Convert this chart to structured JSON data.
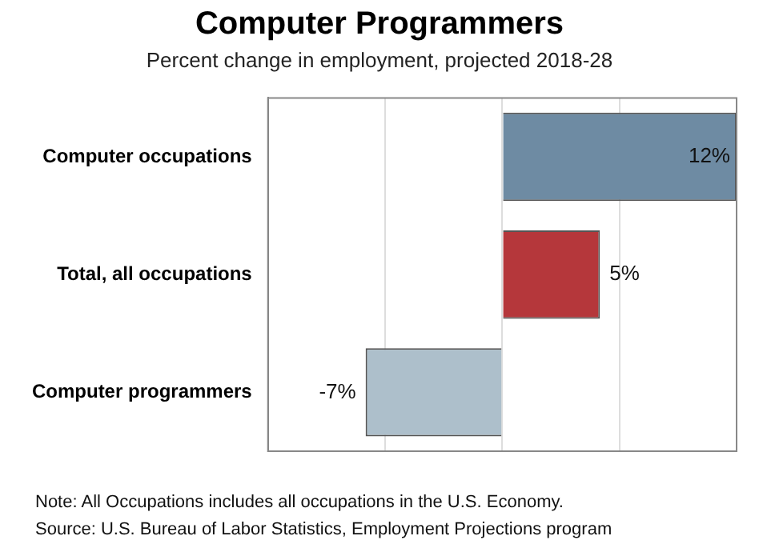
{
  "chart_data": {
    "type": "bar",
    "orientation": "horizontal",
    "title": "Computer Programmers",
    "subtitle": "Percent change in employment, projected 2018-28",
    "categories": [
      "Computer occupations",
      "Total, all occupations",
      "Computer programmers"
    ],
    "values": [
      12,
      5,
      -7
    ],
    "colors": [
      "#6e8ba3",
      "#b5373b",
      "#adbfcb"
    ],
    "value_labels": [
      "12%",
      "5%",
      "-7%"
    ],
    "xlim": [
      -12,
      12
    ],
    "xticks": [
      {
        "value": -12,
        "label": null
      },
      {
        "value": -6,
        "label": null
      },
      {
        "value": 0,
        "label": null
      },
      {
        "value": 6,
        "label": null
      },
      {
        "value": 12,
        "label": null
      }
    ],
    "grid": "x",
    "tick_labels": "y",
    "annotations": [
      "Note: All Occupations includes all occupations in the U.S. Economy.",
      "Source: U.S. Bureau of Labor Statistics, Employment Projections program"
    ]
  }
}
